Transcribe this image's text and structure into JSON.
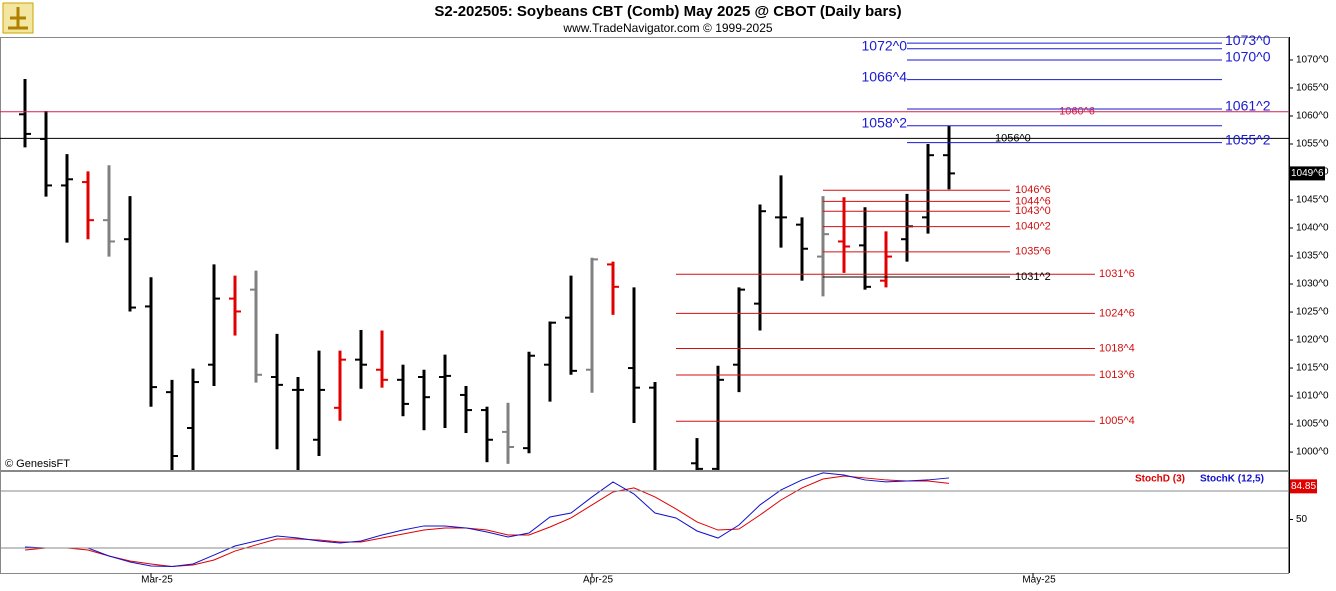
{
  "chart_data": [
    {
      "type": "ohlc",
      "title": "S2-202505:  Soybeans CBT (Comb) May 2025 @ CBOT  (Daily bars)",
      "subtitle": "www.TradeNavigator.com © 1999-2025",
      "source": "© GenesisFT",
      "categories": [
        null,
        null,
        null,
        null,
        null,
        null,
        "Mar-25",
        null,
        null,
        null,
        null,
        null,
        null,
        null,
        null,
        null,
        null,
        null,
        null,
        null,
        null,
        null,
        null,
        null,
        null,
        null,
        null,
        "Apr-25",
        null,
        null,
        null,
        null,
        null,
        null,
        null,
        null,
        null,
        null,
        null,
        null,
        null,
        null,
        null,
        null,
        null,
        null,
        null,
        null,
        "May-25"
      ],
      "high": [
        1066.6,
        1060.9,
        1053.2,
        1050.1,
        1051.2,
        1045.7,
        1031.2,
        1012.9,
        1014.9,
        1033.5,
        1031.5,
        1032.4,
        1021.1,
        1013.4,
        1018.1,
        1018.1,
        1021.8,
        1021.7,
        1015.6,
        1014.7,
        1017.4,
        1011.8,
        1008.1,
        1008.8,
        1017.9,
        1023.3,
        1031.5,
        1034.7,
        1034.0,
        1029.4,
        1012.5,
        null,
        1002.5,
        1015.4,
        1029.4,
        1044.2,
        1049.4,
        1041.9,
        1045.7,
        1045.5,
        1043.7,
        1039.4,
        1046.1,
        1055.0,
        1058.2,
        null,
        null,
        null,
        null
      ],
      "low": [
        1054.4,
        1045.6,
        1037.4,
        1038.0,
        1034.9,
        1025.1,
        1008.1,
        995.0,
        995.0,
        1011.8,
        1020.8,
        1012.4,
        1000.5,
        995.0,
        999.3,
        1005.6,
        1011.3,
        1011.5,
        1006.4,
        1003.9,
        1004.3,
        1003.4,
        998.2,
        997.9,
        999.8,
        1009.0,
        1013.8,
        1010.6,
        1024.5,
        1005.2,
        995.0,
        null,
        995.0,
        995.0,
        1010.7,
        1021.7,
        1036.5,
        1030.6,
        1027.8,
        1032.0,
        1029.0,
        1029.4,
        1034.0,
        1039.0,
        1046.9,
        null,
        null,
        null,
        null
      ],
      "open": [
        1060.3,
        1055.9,
        1047.6,
        1048.2,
        1041.4,
        1038.0,
        1026.0,
        1010.7,
        1004.3,
        1015.6,
        1027.4,
        1029.0,
        1013.4,
        1011.1,
        1002.2,
        1007.9,
        1016.5,
        1014.7,
        1012.9,
        1013.4,
        1013.4,
        1010.2,
        1007.5,
        1003.6,
        1000.7,
        1015.6,
        1024.0,
        1014.7,
        1033.5,
        1015.0,
        1011.5,
        null,
        998.0,
        997.0,
        1015.6,
        1026.5,
        1041.9,
        1040.6,
        1034.9,
        1037.6,
        1036.9,
        1030.6,
        1038.0,
        1041.9,
        1053.0,
        null,
        null,
        null,
        null
      ],
      "close": [
        1056.8,
        1047.6,
        1048.7,
        1041.4,
        1037.6,
        1025.8,
        1011.6,
        999.3,
        1012.5,
        1027.4,
        1025.1,
        1013.8,
        1012.0,
        1011.1,
        1011.1,
        1016.5,
        1015.6,
        1012.9,
        1008.6,
        1009.8,
        1013.6,
        1007.5,
        1002.2,
        1000.9,
        1017.2,
        1023.1,
        1014.5,
        1034.4,
        1029.5,
        1011.5,
        996.0,
        null,
        997.0,
        1012.9,
        1029.0,
        1043.0,
        1041.9,
        1036.3,
        1038.9,
        1036.7,
        1029.5,
        1034.9,
        1040.3,
        1053.0,
        1049.75,
        null,
        null,
        null,
        null
      ],
      "colors": [
        "#000000",
        "#000000",
        "#000000",
        "#e00000",
        "#808080",
        "#000000",
        "#000000",
        "#000000",
        "#000000",
        "#000000",
        "#e00000",
        "#808080",
        "#000000",
        "#000000",
        "#000000",
        "#e00000",
        "#000000",
        "#e00000",
        "#000000",
        "#000000",
        "#000000",
        "#000000",
        "#000000",
        "#808080",
        "#000000",
        "#000000",
        "#000000",
        "#808080",
        "#e00000",
        "#000000",
        "#000000",
        null,
        "#000000",
        "#000000",
        "#000000",
        "#000000",
        "#000000",
        "#000000",
        "#808080",
        "#e00000",
        "#000000",
        "#e00000",
        "#000000",
        "#000000",
        "#000000",
        null,
        null,
        null,
        null
      ],
      "ylim": [
        996.8,
        1074.1
      ],
      "yticks": [
        {
          "value": 1000,
          "label": "1000^0"
        },
        {
          "value": 1005,
          "label": "1005^0"
        },
        {
          "value": 1010,
          "label": "1010^0"
        },
        {
          "value": 1015,
          "label": "1015^0"
        },
        {
          "value": 1020,
          "label": "1020^0"
        },
        {
          "value": 1025,
          "label": "1025^0"
        },
        {
          "value": 1030,
          "label": "1030^0"
        },
        {
          "value": 1035,
          "label": "1035^0"
        },
        {
          "value": 1040,
          "label": "1040^0"
        },
        {
          "value": 1045,
          "label": "1045^0"
        },
        {
          "value": 1050,
          "label": "1050^0"
        },
        {
          "value": 1055,
          "label": "1055^0"
        },
        {
          "value": 1060,
          "label": "1060^0"
        },
        {
          "value": 1065,
          "label": "1065^0"
        },
        {
          "value": 1070,
          "label": "1070^0"
        }
      ],
      "levels": [
        {
          "value": 1073,
          "label": "1073^0",
          "color": "#1a1ad0"
        },
        {
          "value": 1072,
          "label": "1072^0",
          "color": "#1a1ad0"
        },
        {
          "value": 1070,
          "label": "1070^0",
          "color": "#1a1ad0"
        },
        {
          "value": 1066.5,
          "label": "1066^4",
          "color": "#1a1ad0"
        },
        {
          "value": 1061.25,
          "label": "1061^2",
          "color": "#1a1ad0"
        },
        {
          "value": 1060.75,
          "label": "1060^6",
          "color": "#d02050"
        },
        {
          "value": 1058.25,
          "label": "1058^2",
          "color": "#1a1ad0"
        },
        {
          "value": 1056,
          "label": "1056^0",
          "color": "#000000"
        },
        {
          "value": 1055.25,
          "label": "1055^2",
          "color": "#1a1ad0"
        },
        {
          "value": 1046.75,
          "label": "1046^6",
          "color": "#d01010"
        },
        {
          "value": 1044.75,
          "label": "1044^6",
          "color": "#d01010"
        },
        {
          "value": 1043,
          "label": "1043^0",
          "color": "#d01010"
        },
        {
          "value": 1040.25,
          "label": "1040^2",
          "color": "#d01010"
        },
        {
          "value": 1035.75,
          "label": "1035^6",
          "color": "#d01010"
        },
        {
          "value": 1031.75,
          "label": "1031^6",
          "color": "#d01010"
        },
        {
          "value": 1031.25,
          "label": "1031^2",
          "color": "#000000"
        },
        {
          "value": 1024.75,
          "label": "1024^6",
          "color": "#d01010"
        },
        {
          "value": 1018.5,
          "label": "1018^4",
          "color": "#d01010"
        },
        {
          "value": 1013.75,
          "label": "1013^6",
          "color": "#d01010"
        },
        {
          "value": 1005.5,
          "label": "1005^4",
          "color": "#d01010"
        }
      ],
      "last_price": {
        "value": 1049.75,
        "label": "1049^6"
      }
    },
    {
      "type": "line",
      "series": [
        {
          "name": "StochD (3)",
          "color": "#e00000",
          "values": [
            17.9,
            20.0,
            20.0,
            17.9,
            11.6,
            6.3,
            3.2,
            0.5,
            2.1,
            7.4,
            16.8,
            23.2,
            29.5,
            29.5,
            28.4,
            26.3,
            26.3,
            30.5,
            34.7,
            38.9,
            41.1,
            41.1,
            38.9,
            33.7,
            33.7,
            42.1,
            51.6,
            65.3,
            78.9,
            83.2,
            73.7,
            61.1,
            47.4,
            38.9,
            40.0,
            54.7,
            70.5,
            83.2,
            92.6,
            95.8,
            93.7,
            91.6,
            90.5,
            90.5,
            88.0,
            null,
            null,
            null,
            null
          ]
        },
        {
          "name": "StochK (12,5)",
          "color": "#1010d0",
          "values": [
            21.1,
            20.0,
            20.0,
            20.0,
            11.6,
            5.3,
            1.1,
            0.5,
            3.2,
            12.6,
            22.1,
            27.4,
            32.6,
            30.5,
            27.4,
            25.3,
            27.4,
            33.7,
            38.9,
            43.2,
            43.2,
            41.1,
            36.8,
            31.6,
            35.8,
            52.6,
            56.8,
            73.7,
            89.5,
            76.8,
            56.8,
            51.6,
            37.9,
            30.5,
            44.2,
            65.3,
            81.1,
            91.6,
            99.0,
            96.8,
            91.6,
            89.5,
            90.5,
            91.6,
            93.7,
            null,
            null,
            null,
            null
          ]
        }
      ],
      "ylim": [
        -6.3,
        101
      ],
      "yticks": [
        50
      ],
      "hlines": [
        20,
        80
      ],
      "last_value": 84.85
    }
  ]
}
